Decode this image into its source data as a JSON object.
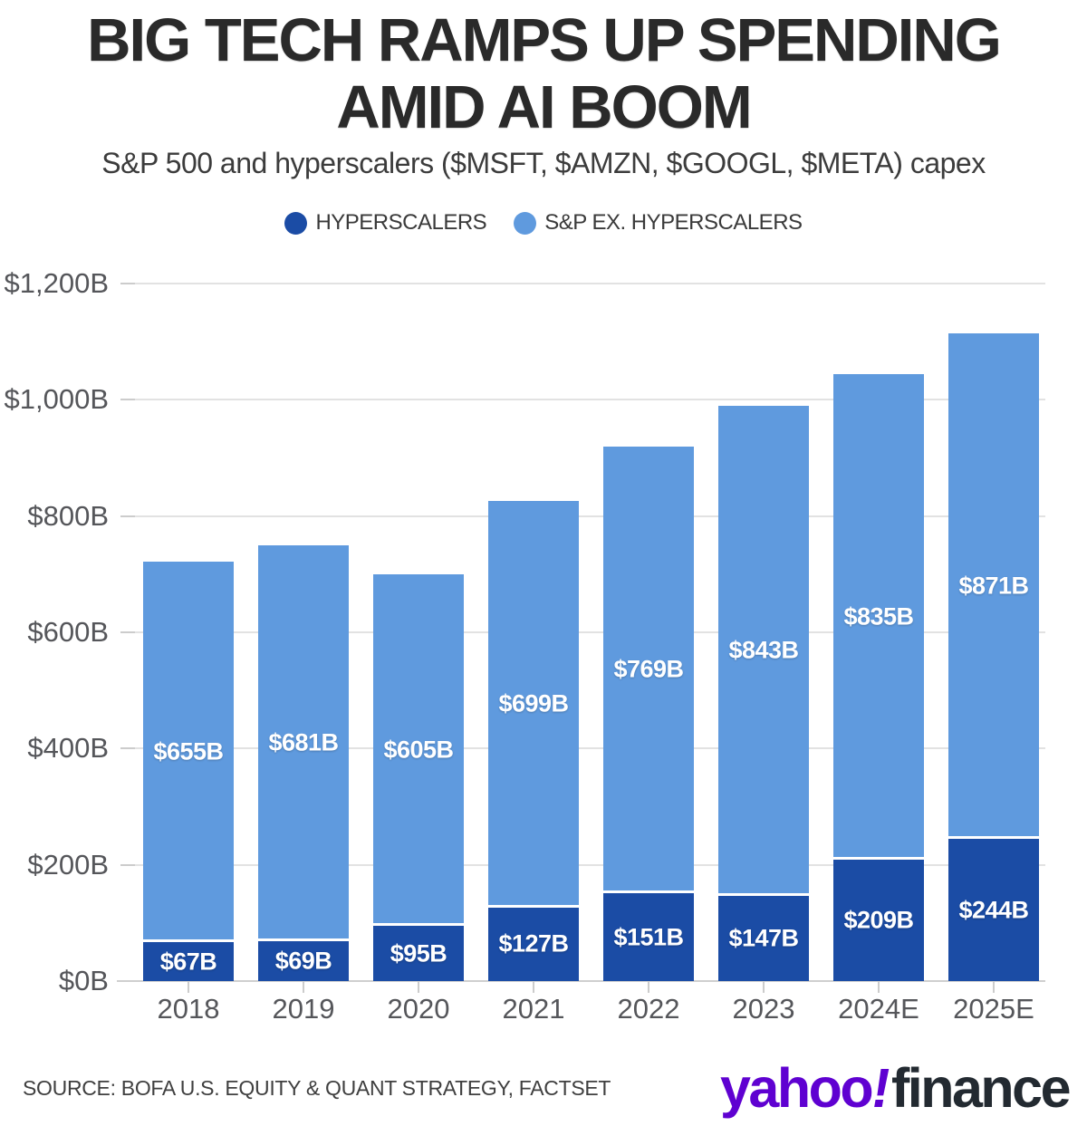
{
  "header": {
    "title_line1": "BIG TECH RAMPS UP SPENDING",
    "title_line2": "AMID AI BOOM",
    "subtitle": "S&P 500 and hyperscalers ($MSFT, $AMZN, $GOOGL, $META) capex"
  },
  "legend": [
    {
      "name": "hyperscalers",
      "label": "HYPERSCALERS",
      "color": "#1b4ca5"
    },
    {
      "name": "sp-ex-hyperscalers",
      "label": "S&P EX. HYPERSCALERS",
      "color": "#5f9ade"
    }
  ],
  "chart_data": {
    "type": "bar",
    "stacked": true,
    "title": "BIG TECH RAMPS UP SPENDING AMID AI BOOM",
    "subtitle": "S&P 500 and hyperscalers ($MSFT, $AMZN, $GOOGL, $META) capex",
    "categories": [
      "2018",
      "2019",
      "2020",
      "2021",
      "2022",
      "2023",
      "2024E",
      "2025E"
    ],
    "series": [
      {
        "name": "HYPERSCALERS",
        "color": "#1b4ca5",
        "values": [
          67,
          69,
          95,
          127,
          151,
          147,
          209,
          244
        ],
        "labels": [
          "$67B",
          "$69B",
          "$95B",
          "$127B",
          "$151B",
          "$147B",
          "$209B",
          "$244B"
        ]
      },
      {
        "name": "S&P EX. HYPERSCALERS",
        "color": "#5f9ade",
        "values": [
          655,
          681,
          605,
          699,
          769,
          843,
          835,
          871
        ],
        "labels": [
          "$655B",
          "$681B",
          "$605B",
          "$699B",
          "$769B",
          "$843B",
          "$835B",
          "$871B"
        ]
      }
    ],
    "totals": [
      722,
      750,
      700,
      826,
      920,
      990,
      1044,
      1115
    ],
    "xlabel": "",
    "ylabel": "",
    "ylim": [
      0,
      1200
    ],
    "ytick_interval": 200,
    "ytick_labels": [
      "$0B",
      "$200B",
      "$400B",
      "$600B",
      "$800B",
      "$1,000B",
      "$1,200B"
    ],
    "grid": true,
    "legend_position": "top",
    "value_label_color": "#ffffff"
  },
  "footer": {
    "source": "SOURCE: BOFA U.S. EQUITY & QUANT STRATEGY, FACTSET",
    "brand": {
      "yahoo": "yahoo",
      "exclaim": "!",
      "finance": "finance",
      "purple_color": "#5f01d1",
      "dark_color": "#232a31"
    }
  }
}
